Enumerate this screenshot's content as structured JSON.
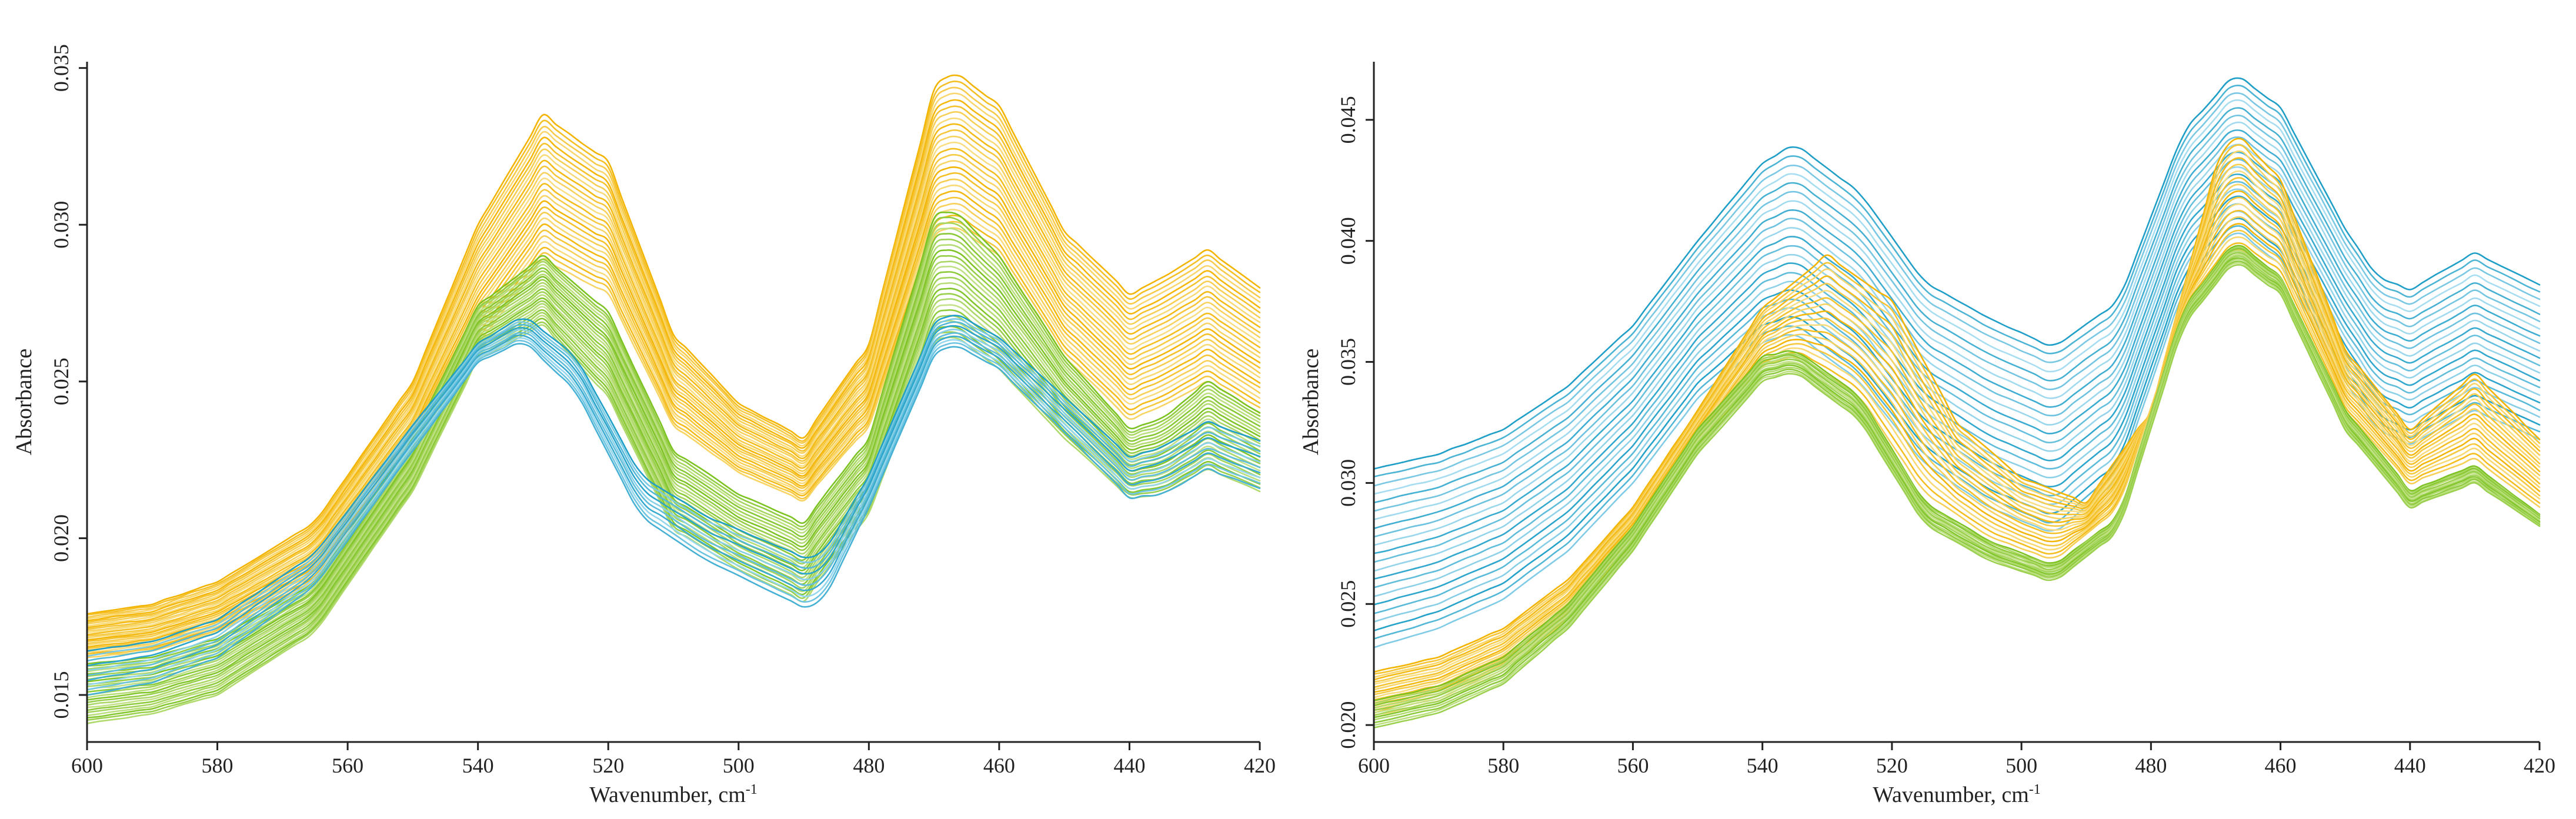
{
  "figure": {
    "description_name": "Two-panel absorbance spectra"
  },
  "chart_data": [
    {
      "type": "line",
      "title": "",
      "xlabel": "Wavenumber, cm",
      "xlabel_superscript": "-1",
      "ylabel": "Absorbance",
      "xlim": [
        600,
        420
      ],
      "ylim": [
        0.0135,
        0.0352
      ],
      "xticks": [
        600,
        580,
        560,
        540,
        520,
        500,
        480,
        460,
        440,
        420
      ],
      "yticks": [
        0.015,
        0.02,
        0.025,
        0.03,
        0.035
      ],
      "ytick_labels": [
        "0.015",
        "0.020",
        "0.025",
        "0.030",
        "0.035"
      ],
      "grid": false,
      "legend": "none",
      "peaks": [
        533,
        490,
        467,
        447,
        428
      ],
      "series_families": [
        {
          "name": "orange",
          "color_dark": "#f3b400",
          "color_light": "#fbe59a",
          "count": 26,
          "points_top": {
            "x": [
              600,
              590,
              580,
              565,
              550,
              540,
              530,
              520,
              510,
              500,
              490,
              480,
              470,
              467,
              460,
              450,
              440,
              435,
              428,
              420
            ],
            "y": [
              0.0176,
              0.0179,
              0.0186,
              0.0205,
              0.025,
              0.03,
              0.0335,
              0.032,
              0.0265,
              0.0243,
              0.0232,
              0.0262,
              0.0343,
              0.0349,
              0.0338,
              0.0298,
              0.0278,
              0.0283,
              0.0292,
              0.028
            ]
          },
          "points_bottom": {
            "x": [
              600,
              590,
              580,
              565,
              550,
              540,
              530,
              520,
              510,
              500,
              490,
              480,
              470,
              467,
              460,
              450,
              440,
              435,
              428,
              420
            ],
            "y": [
              0.0162,
              0.0164,
              0.017,
              0.0186,
              0.0225,
              0.0262,
              0.0289,
              0.0278,
              0.0236,
              0.0221,
              0.0212,
              0.0236,
              0.0296,
              0.03,
              0.029,
              0.0258,
              0.0238,
              0.0242,
              0.025,
              0.024
            ]
          }
        },
        {
          "name": "green",
          "color_dark": "#7cc322",
          "color_light": "#cfe79a",
          "count": 24,
          "points_top": {
            "x": [
              600,
              590,
              580,
              565,
              550,
              540,
              530,
              520,
              510,
              500,
              490,
              480,
              470,
              467,
              460,
              450,
              440,
              435,
              428,
              420
            ],
            "y": [
              0.016,
              0.0162,
              0.0168,
              0.0186,
              0.0232,
              0.0274,
              0.029,
              0.0272,
              0.0228,
              0.0214,
              0.0205,
              0.0232,
              0.0302,
              0.0305,
              0.029,
              0.0258,
              0.0235,
              0.0238,
              0.025,
              0.024
            ]
          },
          "points_bottom": {
            "x": [
              600,
              590,
              580,
              565,
              550,
              540,
              530,
              520,
              510,
              500,
              490,
              480,
              470,
              467,
              460,
              450,
              440,
              435,
              428,
              420
            ],
            "y": [
              0.0141,
              0.0144,
              0.015,
              0.017,
              0.0215,
              0.0257,
              0.0268,
              0.0245,
              0.0203,
              0.019,
              0.018,
              0.0208,
              0.0262,
              0.0265,
              0.0254,
              0.0232,
              0.0213,
              0.0214,
              0.0222,
              0.0215
            ]
          }
        },
        {
          "name": "blue",
          "color_dark": "#1f9fc8",
          "color_light": "#a9e0f3",
          "count": 10,
          "points_top": {
            "x": [
              600,
              590,
              580,
              565,
              550,
              540,
              533,
              525,
              515,
              505,
              490,
              487,
              480,
              470,
              467,
              460,
              450,
              440,
              435,
              428,
              420
            ],
            "y": [
              0.0164,
              0.0167,
              0.0174,
              0.0195,
              0.0236,
              0.0262,
              0.0271,
              0.0258,
              0.022,
              0.0207,
              0.0194,
              0.0195,
              0.022,
              0.0268,
              0.0272,
              0.0264,
              0.0245,
              0.0226,
              0.0229,
              0.0237,
              0.0231
            ]
          },
          "points_bottom": {
            "x": [
              600,
              590,
              580,
              565,
              550,
              540,
              533,
              525,
              515,
              505,
              490,
              487,
              480,
              470,
              467,
              460,
              450,
              440,
              435,
              428,
              420
            ],
            "y": [
              0.015,
              0.0154,
              0.0162,
              0.0185,
              0.0228,
              0.0256,
              0.0263,
              0.0247,
              0.0207,
              0.0193,
              0.0178,
              0.018,
              0.021,
              0.0258,
              0.0262,
              0.0254,
              0.0234,
              0.0213,
              0.0214,
              0.0222,
              0.0216
            ]
          }
        }
      ]
    },
    {
      "type": "line",
      "title": "",
      "xlabel": "Wavenumber, cm",
      "xlabel_superscript": "-1",
      "ylabel": "Absorbance",
      "xlim": [
        600,
        420
      ],
      "ylim": [
        0.0193,
        0.0474
      ],
      "xticks": [
        600,
        580,
        560,
        540,
        520,
        500,
        480,
        460,
        440,
        420
      ],
      "yticks": [
        0.02,
        0.025,
        0.03,
        0.035,
        0.04,
        0.045
      ],
      "ytick_labels": [
        "0.020",
        "0.025",
        "0.030",
        "0.035",
        "0.040",
        "0.045"
      ],
      "grid": false,
      "legend": "none",
      "peaks": [
        535,
        493,
        467,
        445,
        430
      ],
      "series_families": [
        {
          "name": "blue",
          "color_dark": "#1f9fc8",
          "color_light": "#bfe8f7",
          "count": 22,
          "points_top": {
            "x": [
              600,
              590,
              580,
              570,
              560,
              550,
              540,
              535,
              525,
              515,
              505,
              495,
              485,
              475,
              467,
              460,
              450,
              445,
              440,
              430,
              420
            ],
            "y": [
              0.0306,
              0.0312,
              0.0322,
              0.034,
              0.0365,
              0.04,
              0.0432,
              0.044,
              0.042,
              0.0383,
              0.0368,
              0.0356,
              0.0375,
              0.0445,
              0.0469,
              0.0455,
              0.0405,
              0.0385,
              0.038,
              0.0395,
              0.0382
            ]
          },
          "points_bottom": {
            "x": [
              600,
              590,
              580,
              570,
              560,
              550,
              540,
              535,
              525,
              515,
              505,
              495,
              485,
              475,
              467,
              460,
              450,
              445,
              440,
              430,
              420
            ],
            "y": [
              0.0232,
              0.024,
              0.0252,
              0.0272,
              0.03,
              0.0335,
              0.0358,
              0.0362,
              0.0342,
              0.0308,
              0.029,
              0.0279,
              0.0302,
              0.038,
              0.0405,
              0.039,
              0.0342,
              0.0322,
              0.0316,
              0.033,
              0.0318
            ]
          }
        },
        {
          "name": "orange",
          "color_dark": "#f3b400",
          "color_light": "#fbe59a",
          "count": 18,
          "points_top": {
            "x": [
              600,
              590,
              580,
              570,
              560,
              550,
              540,
              530,
              520,
              510,
              500,
              490,
              480,
              470,
              467,
              460,
              450,
              440,
              430,
              420
            ],
            "y": [
              0.0222,
              0.0228,
              0.024,
              0.026,
              0.029,
              0.033,
              0.0372,
              0.0394,
              0.0375,
              0.0325,
              0.0302,
              0.0292,
              0.033,
              0.043,
              0.0445,
              0.0425,
              0.0355,
              0.0322,
              0.0345,
              0.0318
            ]
          },
          "points_bottom": {
            "x": [
              600,
              590,
              580,
              570,
              560,
              550,
              540,
              535,
              525,
              515,
              505,
              495,
              485,
              475,
              467,
              460,
              450,
              440,
              430,
              420
            ],
            "y": [
              0.0204,
              0.021,
              0.0222,
              0.0244,
              0.0275,
              0.0315,
              0.0348,
              0.0353,
              0.0336,
              0.0296,
              0.0278,
              0.0268,
              0.029,
              0.0372,
              0.0398,
              0.0385,
              0.033,
              0.03,
              0.031,
              0.029
            ]
          }
        },
        {
          "name": "green",
          "color_dark": "#7cc322",
          "color_light": "#cfe79a",
          "count": 12,
          "points_top": {
            "x": [
              600,
              590,
              580,
              570,
              560,
              550,
              540,
              535,
              525,
              515,
              505,
              495,
              485,
              475,
              467,
              460,
              450,
              440,
              430,
              420
            ],
            "y": [
              0.021,
              0.0216,
              0.0228,
              0.025,
              0.0282,
              0.0322,
              0.0352,
              0.0355,
              0.0336,
              0.0292,
              0.0276,
              0.0266,
              0.0286,
              0.0372,
              0.04,
              0.0385,
              0.033,
              0.0297,
              0.0307,
              0.0287
            ]
          },
          "points_bottom": {
            "x": [
              600,
              590,
              580,
              570,
              560,
              550,
              540,
              535,
              525,
              515,
              505,
              495,
              485,
              475,
              467,
              460,
              450,
              440,
              430,
              420
            ],
            "y": [
              0.0199,
              0.0205,
              0.0217,
              0.024,
              0.0272,
              0.0312,
              0.0342,
              0.0346,
              0.0326,
              0.0283,
              0.0268,
              0.0259,
              0.028,
              0.0365,
              0.0392,
              0.0378,
              0.0322,
              0.029,
              0.03,
              0.0282
            ]
          }
        }
      ]
    }
  ]
}
